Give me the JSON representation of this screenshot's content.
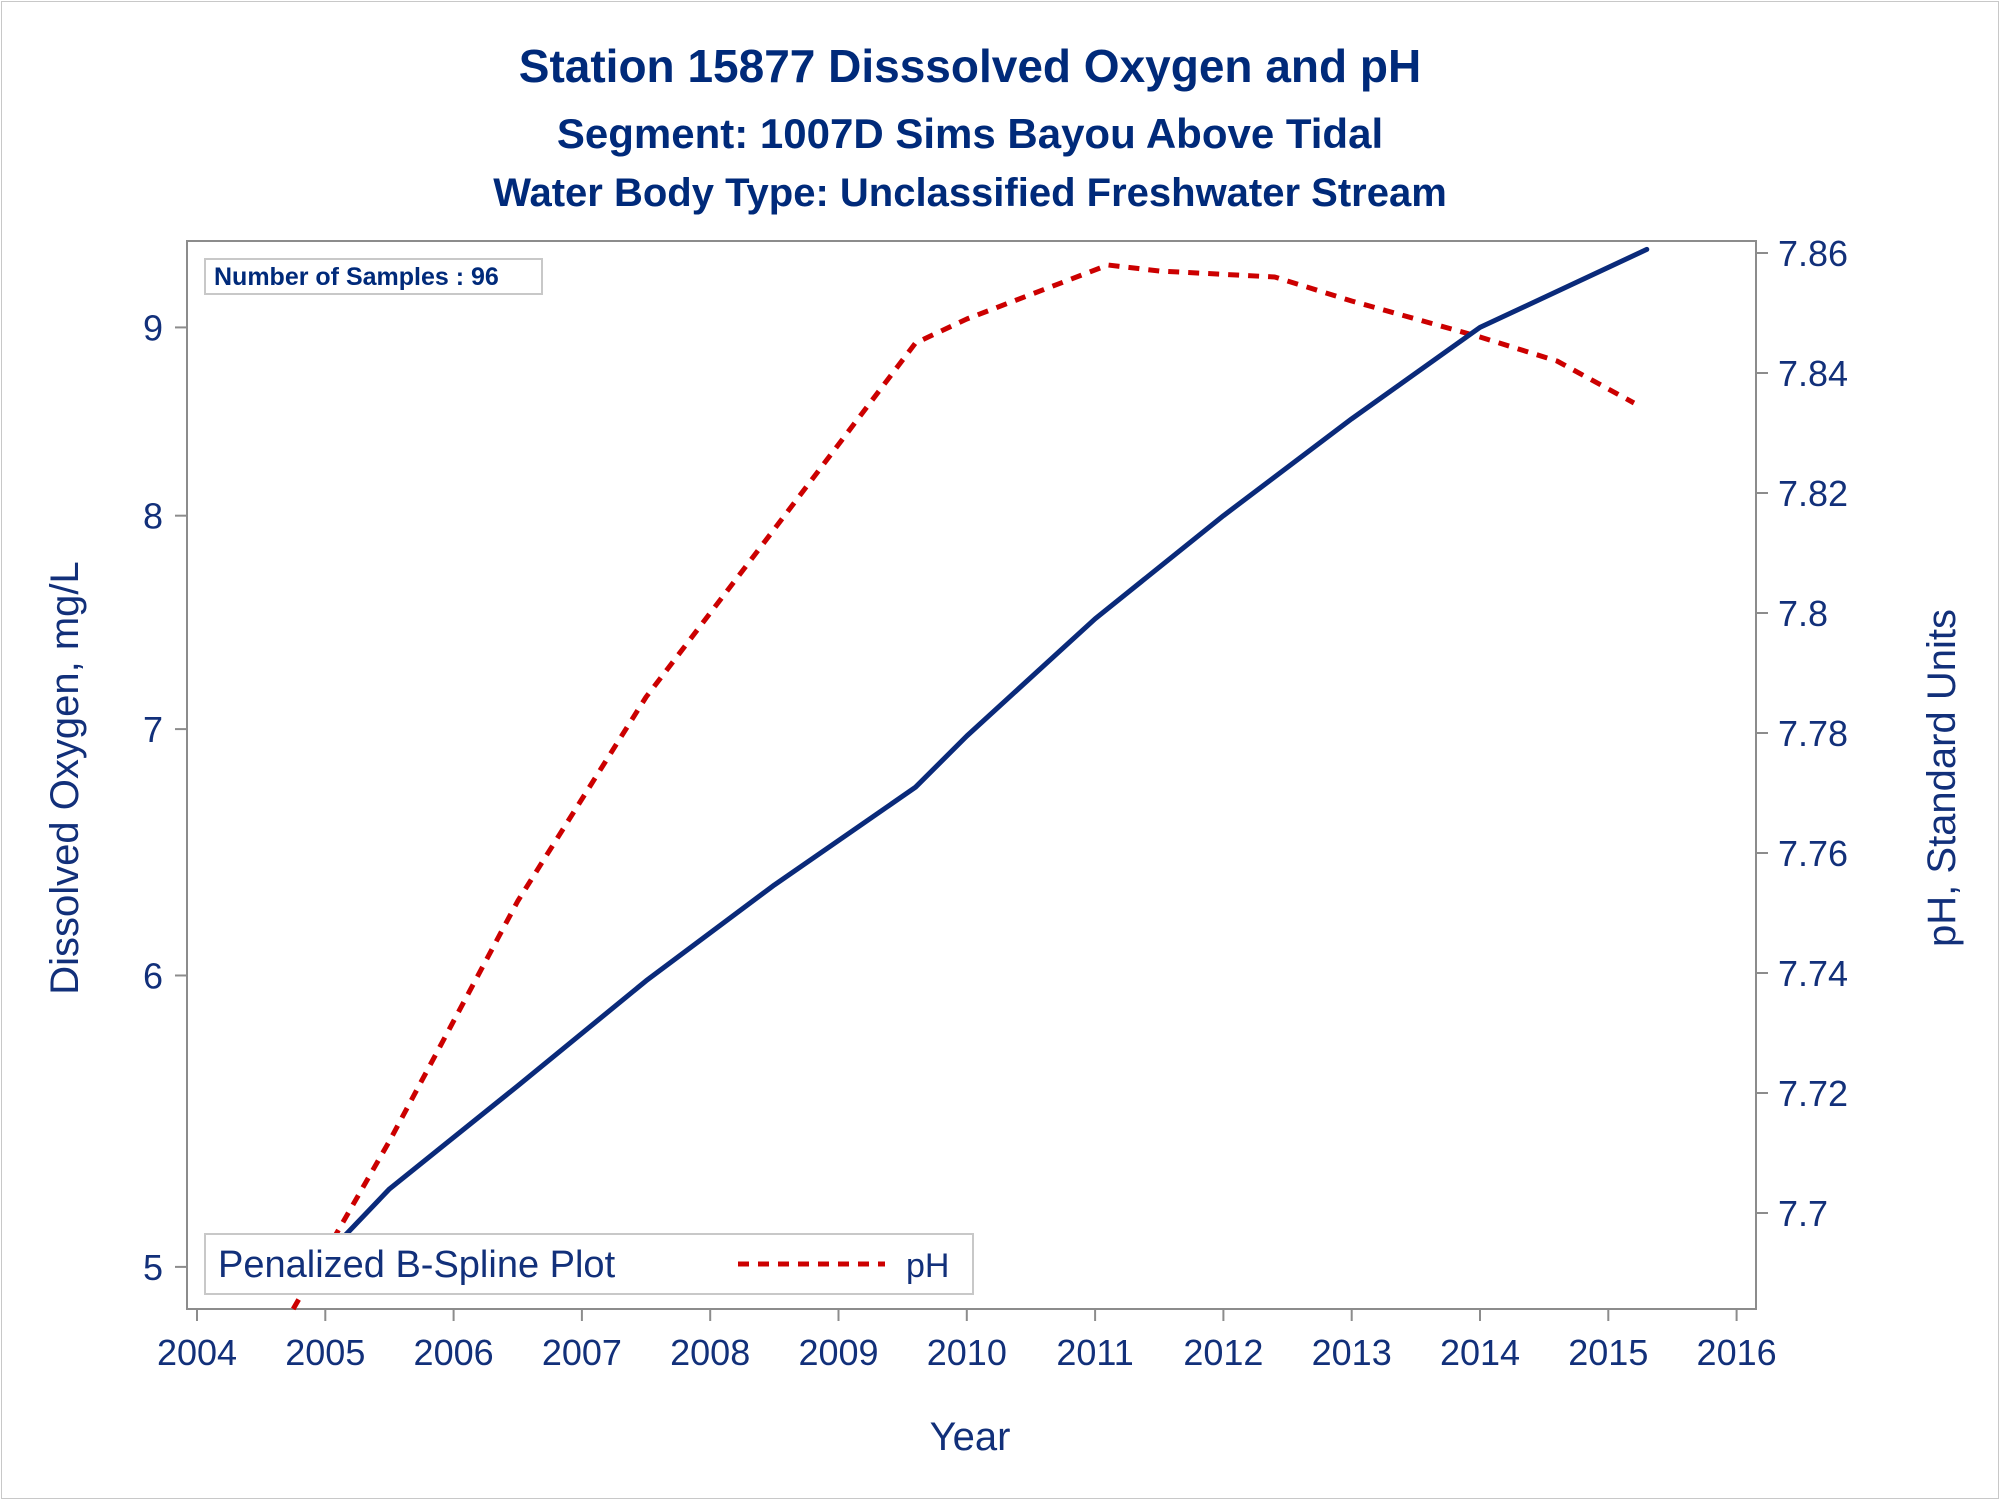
{
  "titles": [
    "Station 15877    Disssolved Oxygen and pH",
    "Segment: 1007D  Sims Bayou Above Tidal",
    "Water Body Type: Unclassified Freshwater Stream"
  ],
  "inset": "Number of Samples : 96",
  "legend": {
    "title": "Penalized B-Spline Plot",
    "items": [
      {
        "label": "pH",
        "color": "#cc0000",
        "style": "dashed"
      }
    ]
  },
  "colors": {
    "do_line": "#0a2a7a",
    "ph_line": "#cc0000",
    "text": "#12307a",
    "axis": "#8c8c8c"
  },
  "chart_data": {
    "type": "line",
    "xlabel": "Year",
    "ylabel": "Dissolved Oxygen, mg/L",
    "y2label": "pH, Standard Units",
    "xlim": [
      2004,
      2016
    ],
    "x_ticks": [
      2004,
      2005,
      2006,
      2007,
      2008,
      2009,
      2010,
      2011,
      2012,
      2013,
      2014,
      2015,
      2016
    ],
    "y_scale": "log",
    "ylim": [
      4.87,
      9.5
    ],
    "y_ticks": [
      5,
      6,
      7,
      8,
      9
    ],
    "y2lim": [
      7.684,
      7.862
    ],
    "y2_ticks": [
      7.7,
      7.72,
      7.74,
      7.76,
      7.78,
      7.8,
      7.82,
      7.84,
      7.86
    ],
    "grid": false,
    "legend_position": "bottom-left",
    "series": [
      {
        "axis": "left",
        "x": [
          2004.8,
          2005.5,
          2006.5,
          2007.5,
          2008.5,
          2009.6,
          2010.0,
          2011.0,
          2012.0,
          2013.0,
          2014.0,
          2015.3
        ],
        "values": [
          4.95,
          5.25,
          5.6,
          5.98,
          6.35,
          6.75,
          6.97,
          7.5,
          8.0,
          8.5,
          9.0,
          9.45
        ]
      },
      {
        "name": "pH",
        "axis": "right",
        "x": [
          2004.75,
          2005.5,
          2006.5,
          2007.5,
          2008.5,
          2009.6,
          2010.0,
          2011.1,
          2011.5,
          2012.4,
          2013.0,
          2014.0,
          2014.6,
          2015.2
        ],
        "values": [
          7.684,
          7.712,
          7.752,
          7.786,
          7.814,
          7.845,
          7.849,
          7.858,
          7.857,
          7.856,
          7.852,
          7.846,
          7.842,
          7.835
        ]
      }
    ]
  }
}
